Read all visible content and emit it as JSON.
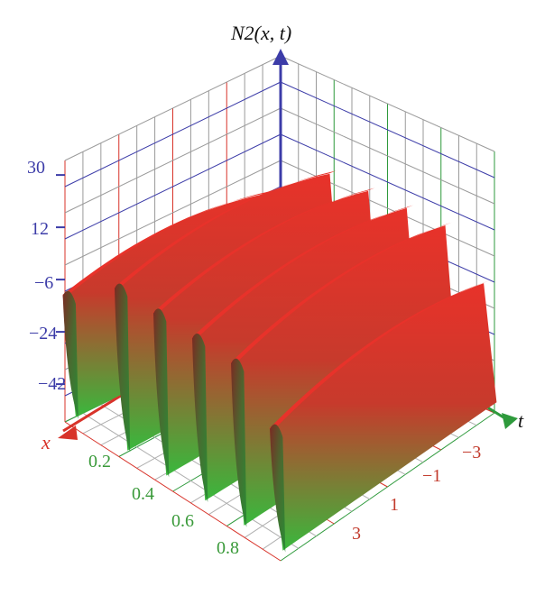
{
  "chart_data": {
    "type": "surface-3d",
    "title": "",
    "xlabel": "x",
    "ylabel": "t",
    "zlabel": "N2(x, t)",
    "z_tick_labels": [
      "30",
      "12",
      "−6",
      "−24",
      "−42"
    ],
    "x_tick_labels": [
      "0.2",
      "0.4",
      "0.6",
      "0.8"
    ],
    "t_tick_labels": [
      "−3",
      "−1",
      "1",
      "3"
    ],
    "z_ticks": [
      30,
      12,
      -6,
      -24,
      -42
    ],
    "x_ticks": [
      0.2,
      0.4,
      0.6,
      0.8
    ],
    "t_ticks": [
      -3,
      -1,
      1,
      3
    ],
    "xlim": [
      0,
      1
    ],
    "tlim": [
      -4,
      4
    ],
    "zlim": [
      -55,
      35
    ],
    "surface_ridges": [
      {
        "x_center": 0.02,
        "peak_z": -6
      },
      {
        "x_center": 0.26,
        "peak_z": 8
      },
      {
        "x_center": 0.44,
        "peak_z": 8
      },
      {
        "x_center": 0.62,
        "peak_z": 8
      },
      {
        "x_center": 0.8,
        "peak_z": 8
      },
      {
        "x_center": 0.98,
        "peak_z": -6
      }
    ],
    "colors": {
      "surface_top": "#e8322a",
      "surface_bottom": "#2fae3a",
      "z_axis": "#3c3ca8",
      "x_axis": "#d8332a",
      "t_axis": "#2e9a3c",
      "grid_blue": "#3c3ca8",
      "grid_red": "#d8332a",
      "grid_green": "#2e9a3c"
    }
  }
}
